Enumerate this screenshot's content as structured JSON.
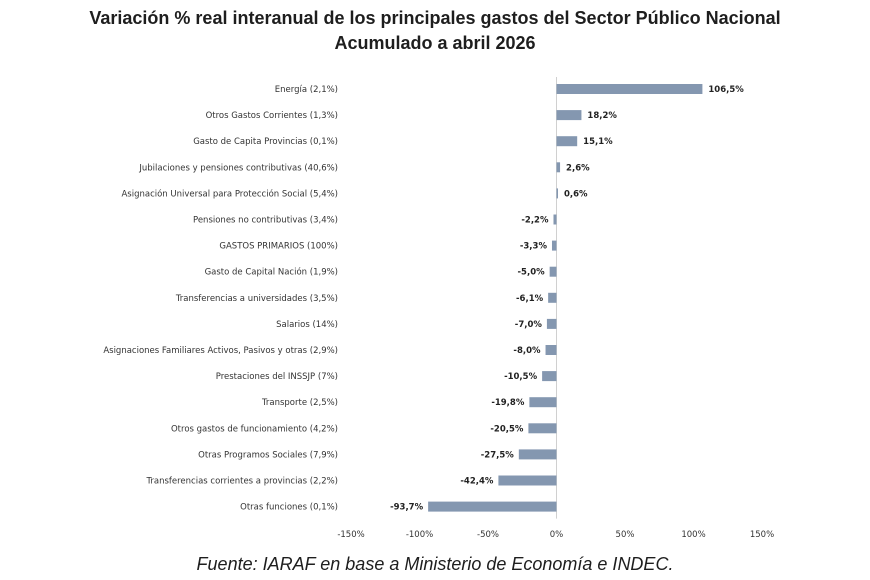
{
  "chart_data": {
    "type": "bar",
    "orientation": "horizontal",
    "title": "Variación % real interanual de los principales gastos del Sector Público Nacional",
    "subtitle": "Acumulado a abril 2026",
    "categories": [
      "Energía (2,1%)",
      "Otros Gastos Corrientes (1,3%)",
      "Gasto de Capita Provincias (0,1%)",
      "Jubilaciones y pensiones contributivas (40,6%)",
      "Asignación Universal para Protección Social (5,4%)",
      "Pensiones no contributivas (3,4%)",
      "GASTOS PRIMARIOS (100%)",
      "Gasto de Capital Nación (1,9%)",
      "Transferencias a universidades (3,5%)",
      "Salarios (14%)",
      "Asignaciones Familiares Activos, Pasivos y otras (2,9%)",
      "Prestaciones del INSSJP (7%)",
      "Transporte (2,5%)",
      "Otros gastos de funcionamiento (4,2%)",
      "Otras Programos Sociales (7,9%)",
      "Transferencias corrientes a provincias (2,2%)",
      "Otras funciones (0,1%)"
    ],
    "values": [
      106.5,
      18.2,
      15.1,
      2.6,
      0.6,
      -2.2,
      -3.3,
      -5.0,
      -6.1,
      -7.0,
      -8.0,
      -10.5,
      -19.8,
      -20.5,
      -27.5,
      -42.4,
      -93.7
    ],
    "value_labels": [
      "106,5%",
      "18,2%",
      "15,1%",
      "2,6%",
      "0,6%",
      "-2,2%",
      "-3,3%",
      "-5,0%",
      "-6,1%",
      "-7,0%",
      "-8,0%",
      "-10,5%",
      "-19,8%",
      "-20,5%",
      "-27,5%",
      "-42,4%",
      "-93,7%"
    ],
    "xlim": [
      -150,
      150
    ],
    "xticks": [
      -150,
      -100,
      -50,
      0,
      50,
      100,
      150
    ],
    "xtick_labels": [
      "-150%",
      "-100%",
      "-50%",
      "0%",
      "50%",
      "100%",
      "150%"
    ],
    "bar_color": "#8497b0",
    "grid": false
  },
  "source": "Fuente: IARAF en base a Ministerio de Economía e INDEC."
}
